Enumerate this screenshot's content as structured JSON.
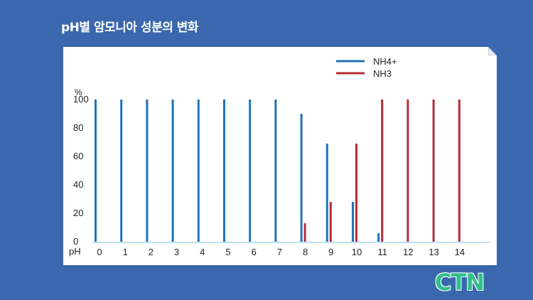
{
  "header": {
    "title": "pH별 암모니아 성분의 변화"
  },
  "logo": {
    "text": "CTN",
    "color": "#2fbf8c"
  },
  "colors": {
    "background": "#3a67ad",
    "nh4": "#2173b8",
    "nh3": "#b62b37",
    "baseline": "#bfe0f0"
  },
  "chart_data": {
    "type": "bar",
    "title": "",
    "xlabel": "pH",
    "ylabel": "%",
    "categories": [
      "0",
      "1",
      "2",
      "3",
      "4",
      "5",
      "6",
      "7",
      "8",
      "9",
      "10",
      "11",
      "12",
      "13",
      "14"
    ],
    "yticks": [
      "0",
      "20",
      "40",
      "60",
      "80",
      "100"
    ],
    "ylim": [
      0,
      100
    ],
    "legend_position": "top-right",
    "series": [
      {
        "name": "NH4+",
        "values": [
          100,
          100,
          100,
          100,
          100,
          100,
          100,
          100,
          90,
          69,
          28,
          6,
          0,
          0,
          0
        ]
      },
      {
        "name": "NH3",
        "values": [
          0,
          0,
          0,
          0,
          0,
          0,
          0,
          0,
          13,
          28,
          69,
          100,
          100,
          100,
          100
        ]
      }
    ]
  }
}
